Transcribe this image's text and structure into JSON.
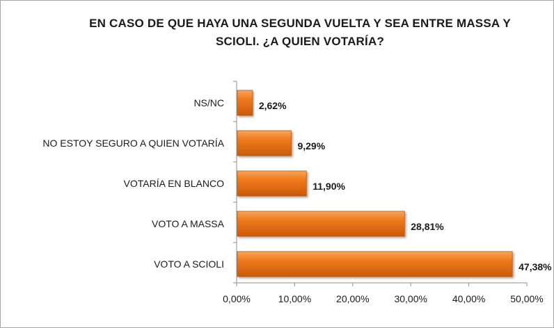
{
  "chart_data": {
    "type": "bar",
    "orientation": "horizontal",
    "title": "EN CASO DE QUE HAYA UNA SEGUNDA VUELTA Y SEA ENTRE MASSA Y SCIOLI. ¿A QUIEN VOTARÍA?",
    "title_lines": [
      "EN CASO DE QUE HAYA UNA SEGUNDA VUELTA Y SEA ENTRE MASSA Y",
      "SCIOLI. ¿A QUIEN VOTARÍA?"
    ],
    "categories": [
      "NS/NC",
      "NO ESTOY SEGURO A QUIEN VOTARÍA",
      "VOTARÍA EN BLANCO",
      "VOTO A MASSA",
      "VOTO A SCIOLI"
    ],
    "values": [
      2.62,
      9.29,
      11.9,
      28.81,
      47.38
    ],
    "value_labels": [
      "2,62%",
      "9,29%",
      "11,90%",
      "28,81%",
      "47,38%"
    ],
    "xlim": [
      0,
      50
    ],
    "x_ticks": [
      0,
      10,
      20,
      30,
      40,
      50
    ],
    "x_tick_labels": [
      "0,00%",
      "10,00%",
      "20,00%",
      "30,00%",
      "40,00%",
      "50,00%"
    ],
    "xlabel": "",
    "ylabel": "",
    "grid": false,
    "legend": "none",
    "colors": {
      "bar_fill": "#f07a1c",
      "bar_light": "#f9a65a",
      "bar_dark": "#c85a0a",
      "bar_border": "#b35a14",
      "axis": "#8c8c8c",
      "text": "#1a1a1a"
    }
  }
}
